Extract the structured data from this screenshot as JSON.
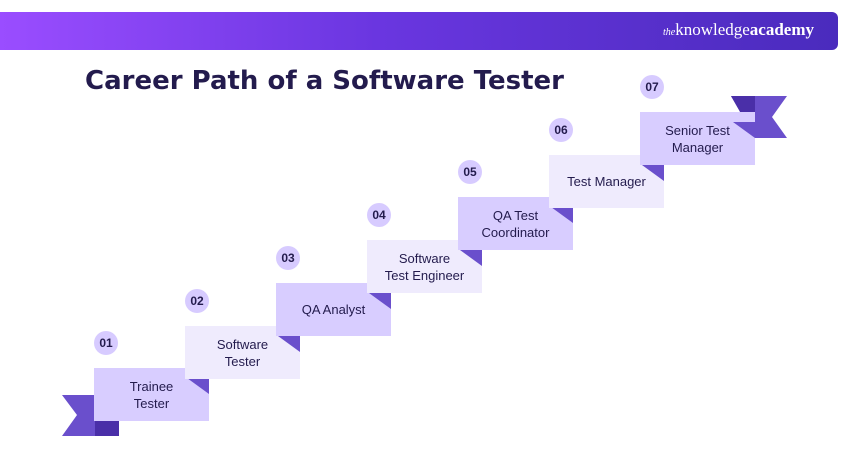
{
  "header": {
    "logo_prefix": "the",
    "logo_main": "knowledge",
    "logo_bold": "academy"
  },
  "title": "Career Path of a Software Tester",
  "steps": [
    {
      "number": "01",
      "label": "Trainee\nTester"
    },
    {
      "number": "02",
      "label": "Software\nTester"
    },
    {
      "number": "03",
      "label": "QA Analyst"
    },
    {
      "number": "04",
      "label": "Software\nTest Engineer"
    },
    {
      "number": "05",
      "label": "QA Test\nCoordinator"
    },
    {
      "number": "06",
      "label": "Test Manager"
    },
    {
      "number": "07",
      "label": "Senior Test\nManager"
    }
  ],
  "colors": {
    "banner_start": "#9a4dff",
    "banner_end": "#4a2bbd",
    "card_dark": "#d8cdff",
    "card_light": "#efebfd",
    "accent": "#6a4fcc",
    "text": "#231b4d"
  }
}
